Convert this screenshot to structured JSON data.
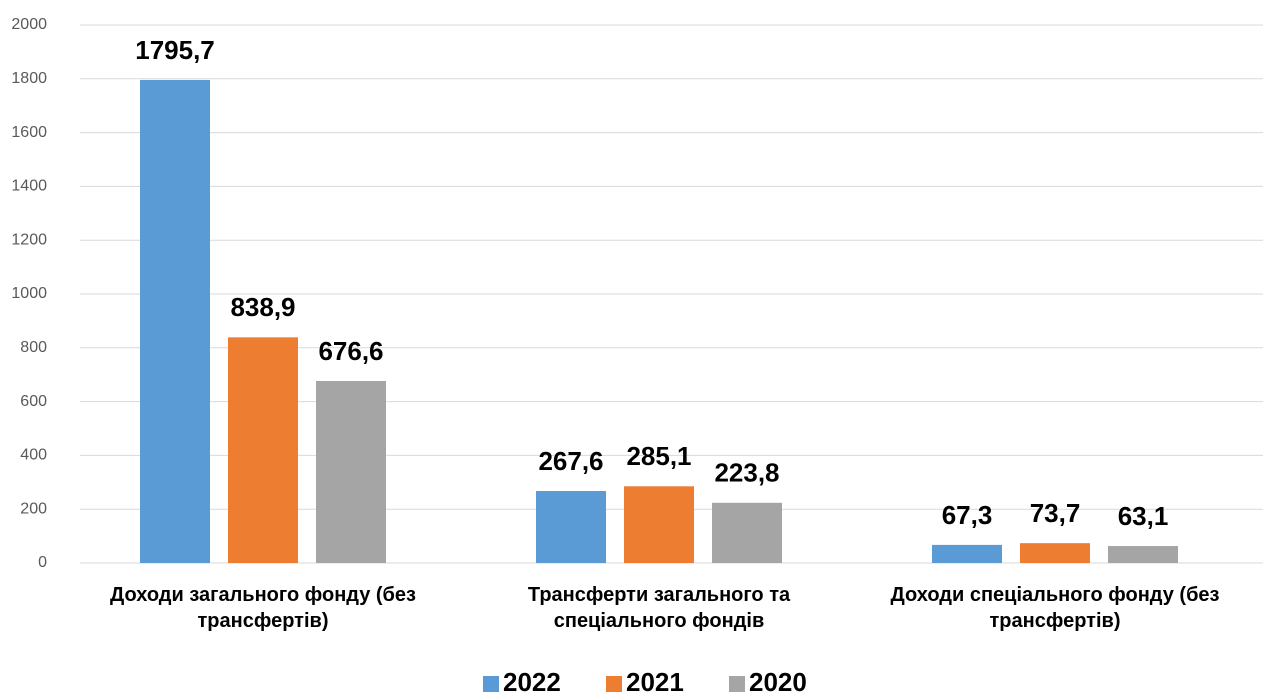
{
  "chart_data": {
    "type": "bar",
    "categories": [
      "Доходи загального фонду (без трансфертів)",
      "Трансферти загального та спеціального фондів",
      "Доходи спеціального фонду (без трансфертів)"
    ],
    "series": [
      {
        "name": "2022",
        "color": "#5b9bd5",
        "values": [
          1795.7,
          267.6,
          67.3
        ],
        "value_labels": [
          "1795,7",
          "267,6",
          "67,3"
        ]
      },
      {
        "name": "2021",
        "color": "#ed7d31",
        "values": [
          838.9,
          285.1,
          73.7
        ],
        "value_labels": [
          "838,9",
          "285,1",
          "73,7"
        ]
      },
      {
        "name": "2020",
        "color": "#a5a5a5",
        "values": [
          676.6,
          223.8,
          63.1
        ],
        "value_labels": [
          "676,6",
          "223,8",
          "63,1"
        ]
      }
    ],
    "ylim": [
      0,
      2000
    ],
    "yticks": [
      0,
      200,
      400,
      600,
      800,
      1000,
      1200,
      1400,
      1600,
      1800,
      2000
    ],
    "grid": true,
    "legend": "bottom"
  }
}
